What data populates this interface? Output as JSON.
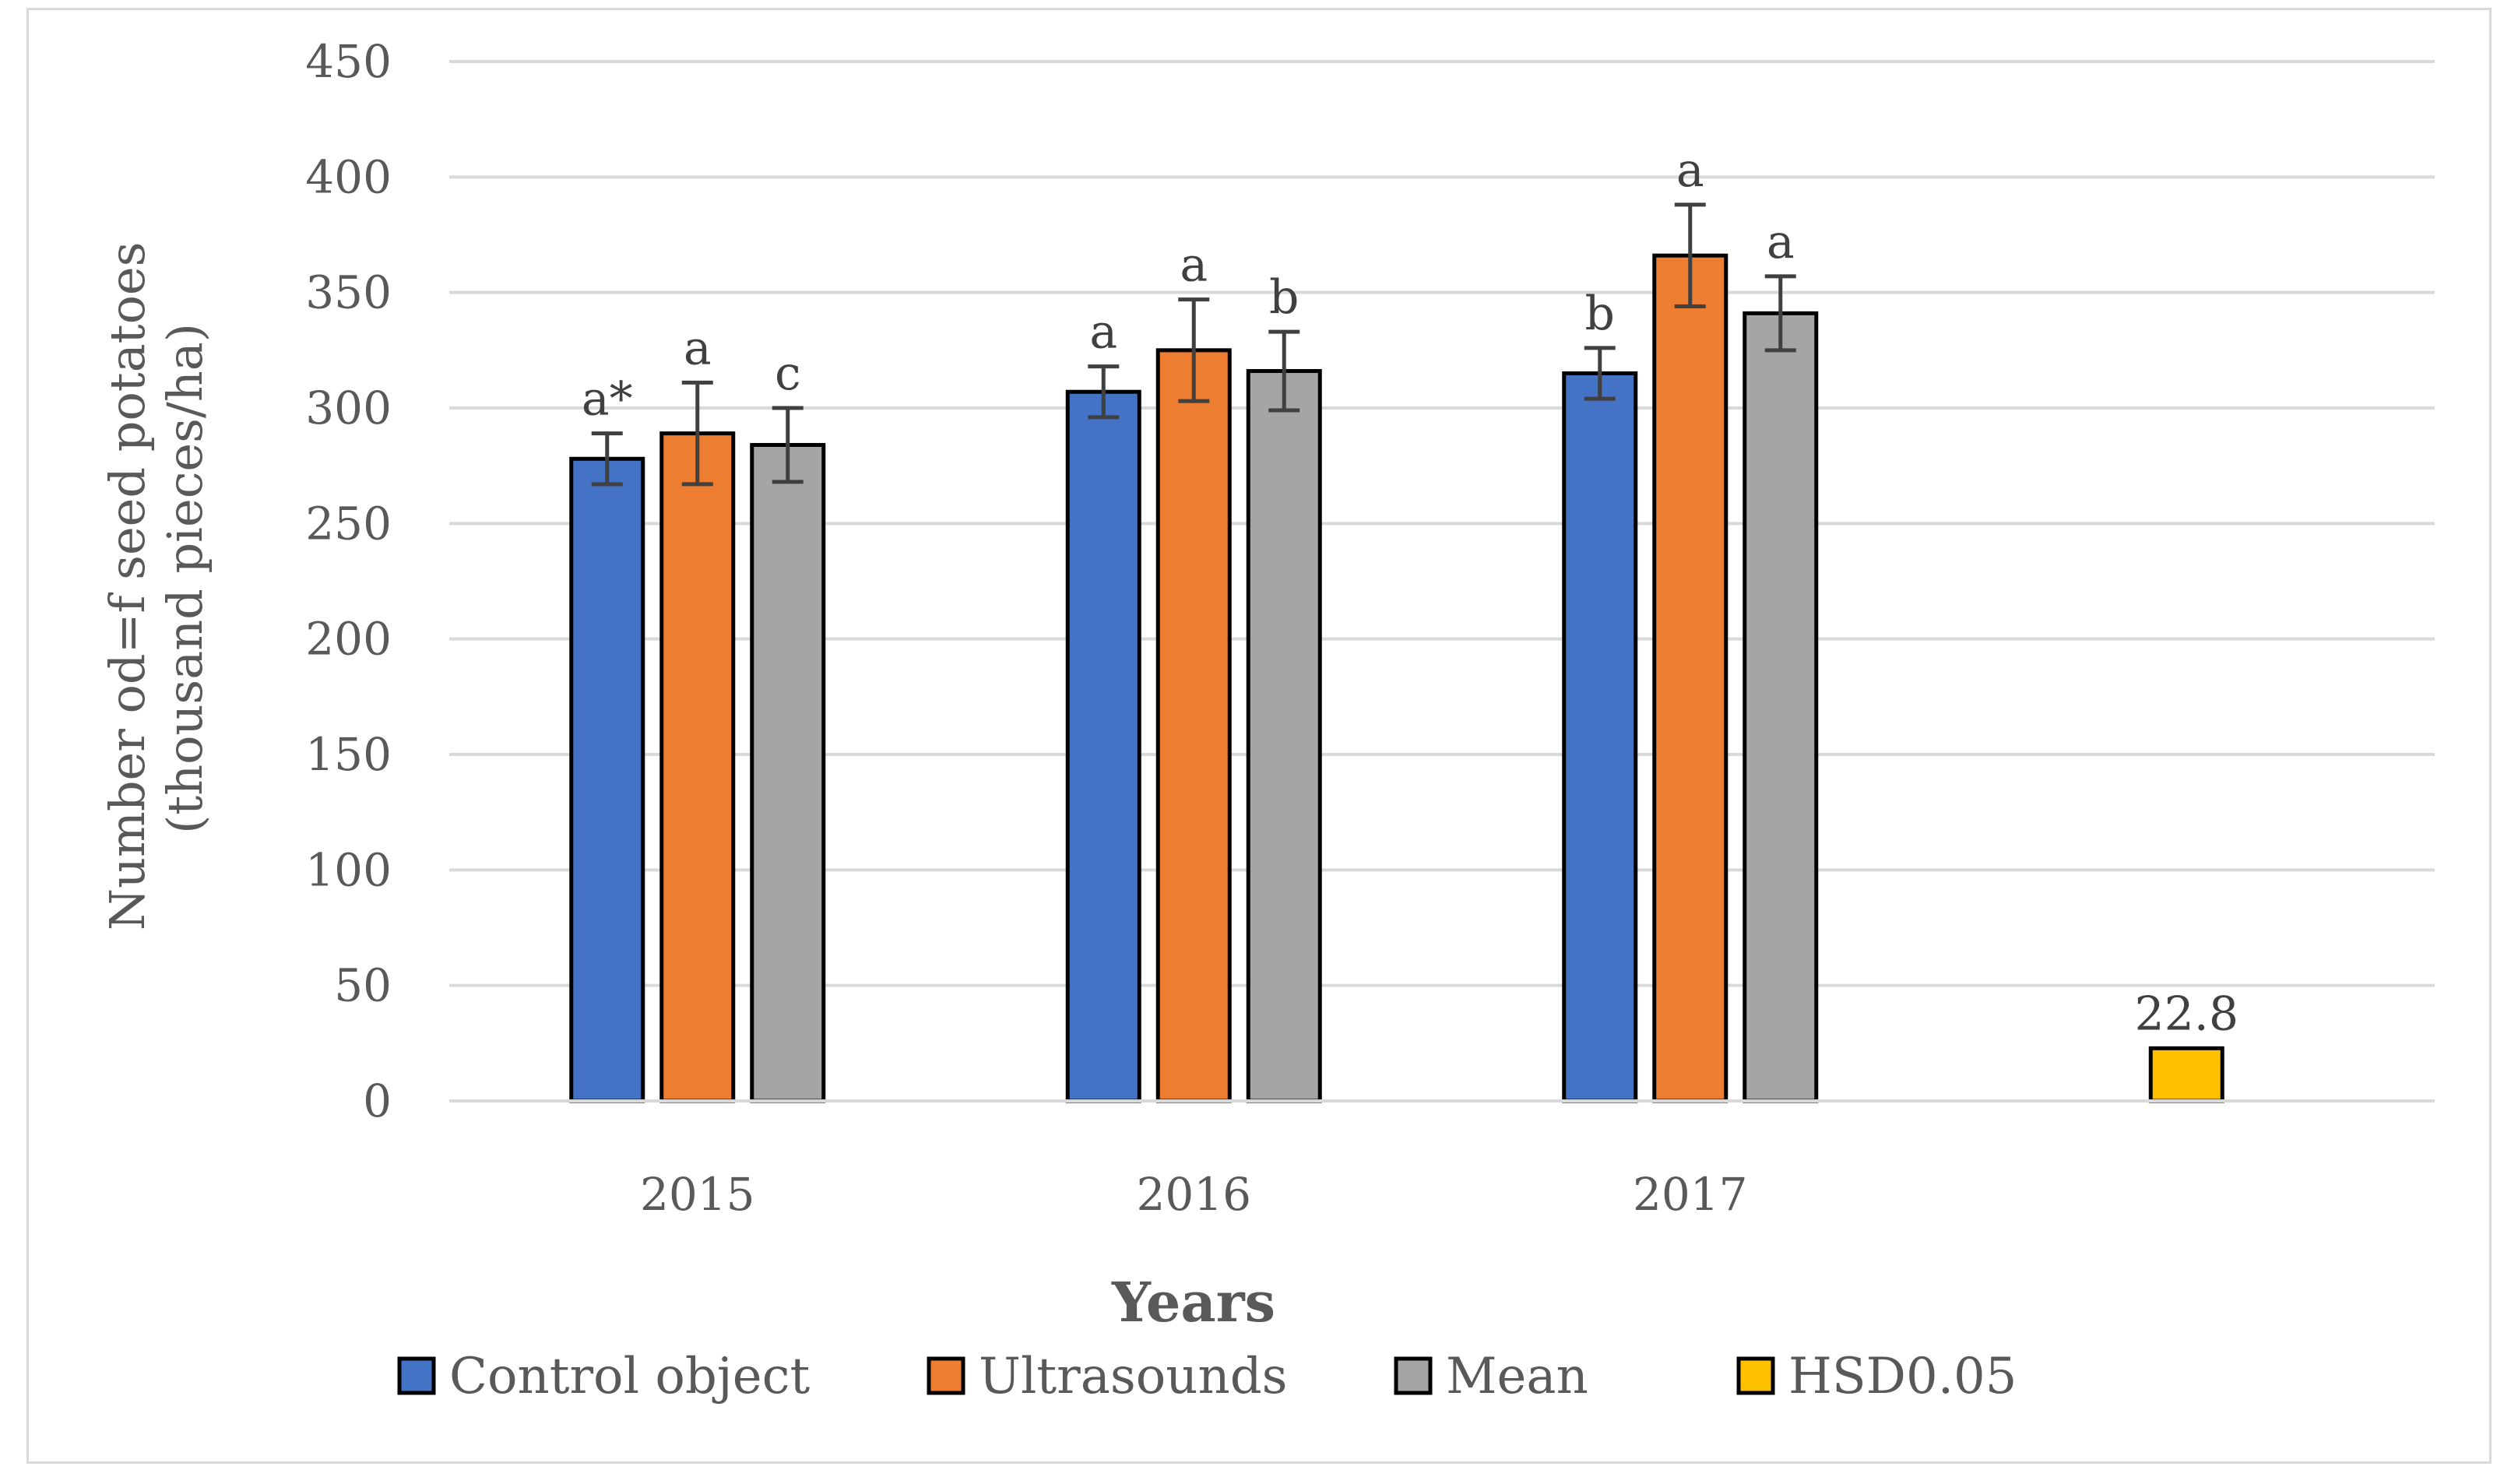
{
  "chart_data": {
    "type": "bar",
    "title": "",
    "xlabel": "Years",
    "ylabel_line1": "Number od=f seed potatoes",
    "ylabel_line2": "(thousand pieces/ha)",
    "ylim": [
      0,
      450
    ],
    "yticks": [
      0,
      50,
      100,
      150,
      200,
      250,
      300,
      350,
      400,
      450
    ],
    "grid": true,
    "legend_position": "bottom",
    "categories": [
      "2015",
      "2016",
      "2017",
      ""
    ],
    "series": [
      {
        "name": "Control object",
        "color": "#4472c4",
        "values": [
          278,
          307,
          315,
          null
        ],
        "errors": [
          11,
          11,
          11,
          null
        ],
        "labels": [
          "a*",
          "a",
          "b",
          null
        ]
      },
      {
        "name": "Ultrasounds",
        "color": "#ed7d31",
        "values": [
          289,
          325,
          366,
          null
        ],
        "errors": [
          22,
          22,
          22,
          null
        ],
        "labels": [
          "a",
          "a",
          "a",
          null
        ]
      },
      {
        "name": "Mean",
        "color": "#a5a5a5",
        "values": [
          284,
          316,
          341,
          null
        ],
        "errors": [
          16,
          17,
          16,
          null
        ],
        "labels": [
          "c",
          "b",
          "a",
          null
        ]
      },
      {
        "name": "HSD0.05",
        "color": "#ffc000",
        "values": [
          null,
          null,
          null,
          22.8
        ],
        "errors": [
          null,
          null,
          null,
          null
        ],
        "labels": [
          null,
          null,
          null,
          "22.8"
        ]
      }
    ]
  }
}
